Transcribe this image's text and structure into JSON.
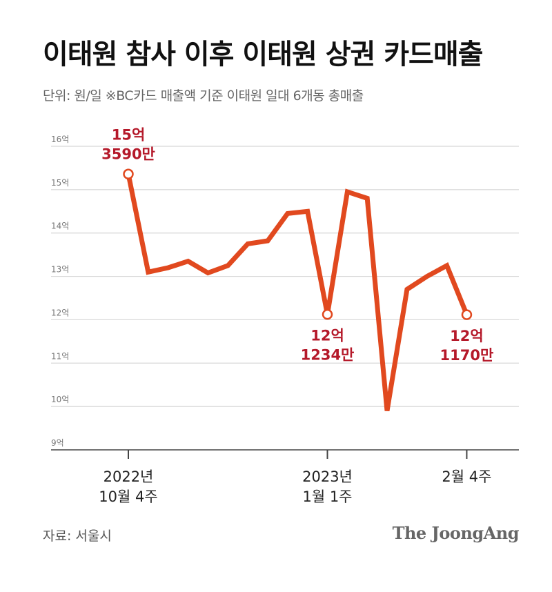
{
  "title": "이태원 참사 이후 이태원 상권 카드매출",
  "subtitle": "단위: 원/일   ※BC카드 매출액 기준 이태원 일대 6개동 총매출",
  "source": "자료: 서울시",
  "brand": "The JoongAng",
  "colors": {
    "line": "#e1491f",
    "annotation": "#b5192a",
    "grid": "#d6d6d6",
    "axis": "#444444"
  },
  "chart_data": {
    "type": "line",
    "unit": "원/일",
    "ylim": [
      9,
      16
    ],
    "y_ticks": [
      {
        "value": 9,
        "label": "9억"
      },
      {
        "value": 10,
        "label": "10억"
      },
      {
        "value": 11,
        "label": "11억"
      },
      {
        "value": 12,
        "label": "12억"
      },
      {
        "value": 13,
        "label": "13억"
      },
      {
        "value": 14,
        "label": "14억"
      },
      {
        "value": 15,
        "label": "15억"
      },
      {
        "value": 16,
        "label": "16억"
      }
    ],
    "x_labels": [
      {
        "index": 0,
        "line1": "2022년",
        "line2": "10월 4주"
      },
      {
        "index": 10,
        "line1": "2023년",
        "line2": "1월 1주"
      },
      {
        "index": 17,
        "line1": "2월 4주",
        "line2": ""
      }
    ],
    "values": [
      15.359,
      13.1,
      13.2,
      13.35,
      13.08,
      13.25,
      13.75,
      13.82,
      14.45,
      14.5,
      12.1234,
      14.95,
      14.8,
      9.9,
      12.7,
      13.0,
      13.25,
      12.117
    ],
    "annotations": [
      {
        "index": 0,
        "line1": "15억",
        "line2": "3590만",
        "position": "above"
      },
      {
        "index": 10,
        "line1": "12억",
        "line2": "1234만",
        "position": "below"
      },
      {
        "index": 17,
        "line1": "12억",
        "line2": "1170만",
        "position": "below"
      }
    ],
    "grid": true,
    "legend": "none"
  }
}
